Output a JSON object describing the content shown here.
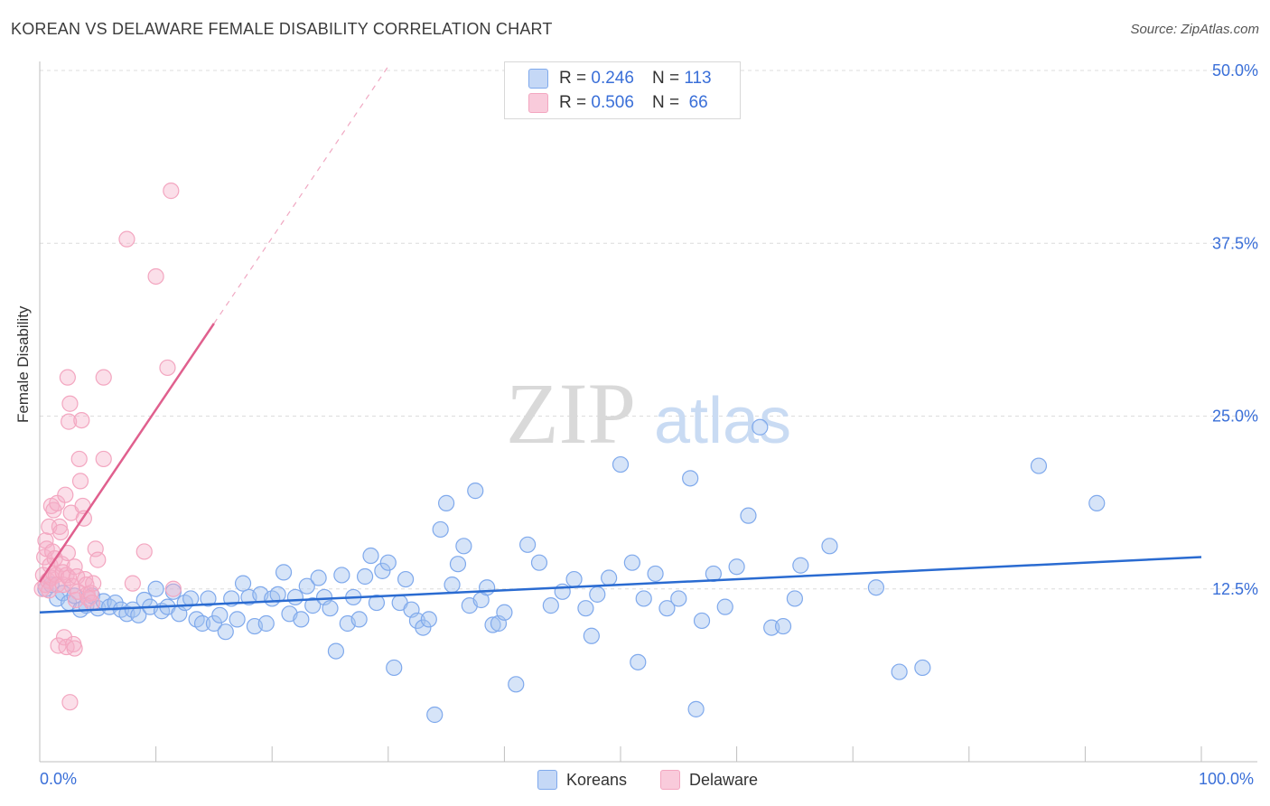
{
  "title": "KOREAN VS DELAWARE FEMALE DISABILITY CORRELATION CHART",
  "source": "Source: ZipAtlas.com",
  "watermark": {
    "zip": "ZIP",
    "atlas": "atlas"
  },
  "legend_top": {
    "rows": [
      {
        "r_label": "R =",
        "r_value": "0.246",
        "n_label": "N =",
        "n_value": "113"
      },
      {
        "r_label": "R =",
        "r_value": "0.506",
        "n_label": "N =",
        "n_value": "66"
      }
    ]
  },
  "legend_bottom": {
    "items": [
      "Koreans",
      "Delaware"
    ]
  },
  "x_labels": {
    "min": "0.0%",
    "max": "100.0%"
  },
  "chart_data": {
    "type": "scatter",
    "title": "KOREAN VS DELAWARE FEMALE DISABILITY CORRELATION CHART",
    "xlabel": "",
    "ylabel": "Female Disability",
    "xlim": [
      0,
      100
    ],
    "ylim": [
      0,
      50
    ],
    "y_ticks": [
      12.5,
      25.0,
      37.5,
      50.0
    ],
    "y_tick_labels": [
      "12.5%",
      "25.0%",
      "37.5%",
      "50.0%"
    ],
    "x_tick_labels": [
      "0.0%",
      "100.0%"
    ],
    "grid": true,
    "series": [
      {
        "name": "Koreans",
        "color": "#7fa9ec",
        "line_color": "#2a6bd1",
        "R": 0.246,
        "N": 113,
        "trend": {
          "x0": 0,
          "y0": 10.8,
          "x1": 100,
          "y1": 14.8
        },
        "points": [
          [
            0.5,
            12.5
          ],
          [
            1,
            12.8
          ],
          [
            1.5,
            11.8
          ],
          [
            2,
            12.2
          ],
          [
            2.5,
            11.5
          ],
          [
            3,
            12.0
          ],
          [
            3.5,
            11.0
          ],
          [
            4,
            11.3
          ],
          [
            4.5,
            12.0
          ],
          [
            5,
            11.1
          ],
          [
            5.5,
            11.6
          ],
          [
            6,
            11.2
          ],
          [
            6.5,
            11.5
          ],
          [
            7,
            11.0
          ],
          [
            7.5,
            10.7
          ],
          [
            8,
            11.0
          ],
          [
            8.5,
            10.6
          ],
          [
            9,
            11.7
          ],
          [
            9.5,
            11.2
          ],
          [
            10,
            12.5
          ],
          [
            10.5,
            10.9
          ],
          [
            11,
            11.2
          ],
          [
            11.5,
            12.3
          ],
          [
            12,
            10.7
          ],
          [
            12.5,
            11.5
          ],
          [
            13,
            11.8
          ],
          [
            13.5,
            10.3
          ],
          [
            14,
            10.0
          ],
          [
            14.5,
            11.8
          ],
          [
            15,
            10.0
          ],
          [
            15.5,
            10.6
          ],
          [
            16,
            9.4
          ],
          [
            16.5,
            11.8
          ],
          [
            17,
            10.3
          ],
          [
            17.5,
            12.9
          ],
          [
            18,
            11.9
          ],
          [
            18.5,
            9.8
          ],
          [
            19,
            12.1
          ],
          [
            19.5,
            10.0
          ],
          [
            20,
            11.8
          ],
          [
            20.5,
            12.1
          ],
          [
            21,
            13.7
          ],
          [
            21.5,
            10.7
          ],
          [
            22,
            11.9
          ],
          [
            22.5,
            10.3
          ],
          [
            23,
            12.7
          ],
          [
            23.5,
            11.3
          ],
          [
            24,
            13.3
          ],
          [
            24.5,
            11.9
          ],
          [
            25,
            11.1
          ],
          [
            25.5,
            8.0
          ],
          [
            26,
            13.5
          ],
          [
            26.5,
            10.0
          ],
          [
            27,
            11.9
          ],
          [
            27.5,
            10.3
          ],
          [
            28,
            13.4
          ],
          [
            28.5,
            14.9
          ],
          [
            29,
            11.5
          ],
          [
            29.5,
            13.8
          ],
          [
            30,
            14.4
          ],
          [
            30.5,
            6.8
          ],
          [
            31,
            11.5
          ],
          [
            31.5,
            13.2
          ],
          [
            32,
            11.0
          ],
          [
            32.5,
            10.2
          ],
          [
            33,
            9.7
          ],
          [
            33.5,
            10.3
          ],
          [
            34,
            3.4
          ],
          [
            34.5,
            16.8
          ],
          [
            35,
            18.7
          ],
          [
            35.5,
            12.8
          ],
          [
            36,
            14.3
          ],
          [
            36.5,
            15.6
          ],
          [
            37,
            11.3
          ],
          [
            37.5,
            19.6
          ],
          [
            38,
            11.7
          ],
          [
            38.5,
            12.6
          ],
          [
            39,
            9.9
          ],
          [
            39.5,
            10.0
          ],
          [
            40,
            10.8
          ],
          [
            41,
            5.6
          ],
          [
            42,
            15.7
          ],
          [
            43,
            14.4
          ],
          [
            44,
            11.3
          ],
          [
            45,
            12.3
          ],
          [
            46,
            13.2
          ],
          [
            47,
            11.1
          ],
          [
            47.5,
            9.1
          ],
          [
            48,
            12.1
          ],
          [
            49,
            13.3
          ],
          [
            50,
            21.5
          ],
          [
            51,
            14.4
          ],
          [
            51.5,
            7.2
          ],
          [
            52,
            11.8
          ],
          [
            53,
            13.6
          ],
          [
            54,
            11.1
          ],
          [
            55,
            11.8
          ],
          [
            56,
            20.5
          ],
          [
            56.5,
            3.8
          ],
          [
            57,
            10.2
          ],
          [
            58,
            13.6
          ],
          [
            59,
            11.2
          ],
          [
            60,
            14.1
          ],
          [
            61,
            17.8
          ],
          [
            62,
            24.2
          ],
          [
            63,
            9.7
          ],
          [
            64,
            9.8
          ],
          [
            65,
            11.8
          ],
          [
            65.5,
            14.2
          ],
          [
            68,
            15.6
          ],
          [
            72,
            12.6
          ],
          [
            74,
            6.5
          ],
          [
            76,
            6.8
          ],
          [
            86,
            21.4
          ],
          [
            91,
            18.7
          ]
        ]
      },
      {
        "name": "Delaware",
        "color": "#f3a6c0",
        "line_color": "#e0608e",
        "R": 0.506,
        "N": 66,
        "trend": {
          "x0": 0,
          "y0": 13.0,
          "x1": 15,
          "y1": 31.7,
          "dash_x1": 30,
          "dash_y1": 50.3
        },
        "points": [
          [
            0.2,
            12.5
          ],
          [
            0.3,
            13.5
          ],
          [
            0.4,
            14.8
          ],
          [
            0.5,
            16.0
          ],
          [
            0.5,
            12.8
          ],
          [
            0.6,
            15.4
          ],
          [
            0.7,
            13.1
          ],
          [
            0.8,
            17.0
          ],
          [
            0.8,
            12.4
          ],
          [
            0.9,
            14.2
          ],
          [
            1.0,
            18.5
          ],
          [
            1.0,
            13.3
          ],
          [
            1.1,
            15.2
          ],
          [
            1.2,
            18.2
          ],
          [
            1.2,
            13.6
          ],
          [
            1.3,
            14.7
          ],
          [
            1.4,
            13.5
          ],
          [
            1.5,
            12.8
          ],
          [
            1.5,
            18.7
          ],
          [
            1.6,
            8.4
          ],
          [
            1.7,
            17.0
          ],
          [
            1.8,
            16.6
          ],
          [
            1.9,
            14.3
          ],
          [
            2.0,
            12.8
          ],
          [
            2.0,
            13.7
          ],
          [
            2.1,
            9.0
          ],
          [
            2.2,
            19.3
          ],
          [
            2.3,
            13.5
          ],
          [
            2.3,
            8.3
          ],
          [
            2.4,
            27.8
          ],
          [
            2.4,
            15.1
          ],
          [
            2.5,
            24.6
          ],
          [
            2.5,
            13.3
          ],
          [
            2.6,
            25.9
          ],
          [
            2.7,
            18.0
          ],
          [
            2.8,
            12.7
          ],
          [
            2.9,
            8.5
          ],
          [
            3.0,
            14.1
          ],
          [
            3.0,
            8.2
          ],
          [
            3.1,
            11.7
          ],
          [
            3.2,
            13.4
          ],
          [
            3.3,
            12.3
          ],
          [
            3.4,
            21.9
          ],
          [
            3.5,
            20.3
          ],
          [
            3.6,
            24.7
          ],
          [
            3.7,
            18.5
          ],
          [
            3.8,
            17.6
          ],
          [
            3.9,
            13.2
          ],
          [
            4.0,
            12.8
          ],
          [
            4.1,
            12.1
          ],
          [
            4.2,
            11.8
          ],
          [
            4.4,
            12.2
          ],
          [
            4.5,
            11.5
          ],
          [
            4.6,
            12.9
          ],
          [
            4.8,
            15.4
          ],
          [
            5.0,
            14.6
          ],
          [
            5.5,
            21.9
          ],
          [
            5.5,
            27.8
          ],
          [
            7.5,
            37.8
          ],
          [
            8.0,
            12.9
          ],
          [
            9.0,
            15.2
          ],
          [
            10.0,
            35.1
          ],
          [
            11.0,
            28.5
          ],
          [
            11.3,
            41.3
          ],
          [
            11.5,
            12.5
          ],
          [
            2.6,
            4.3
          ]
        ]
      }
    ]
  }
}
